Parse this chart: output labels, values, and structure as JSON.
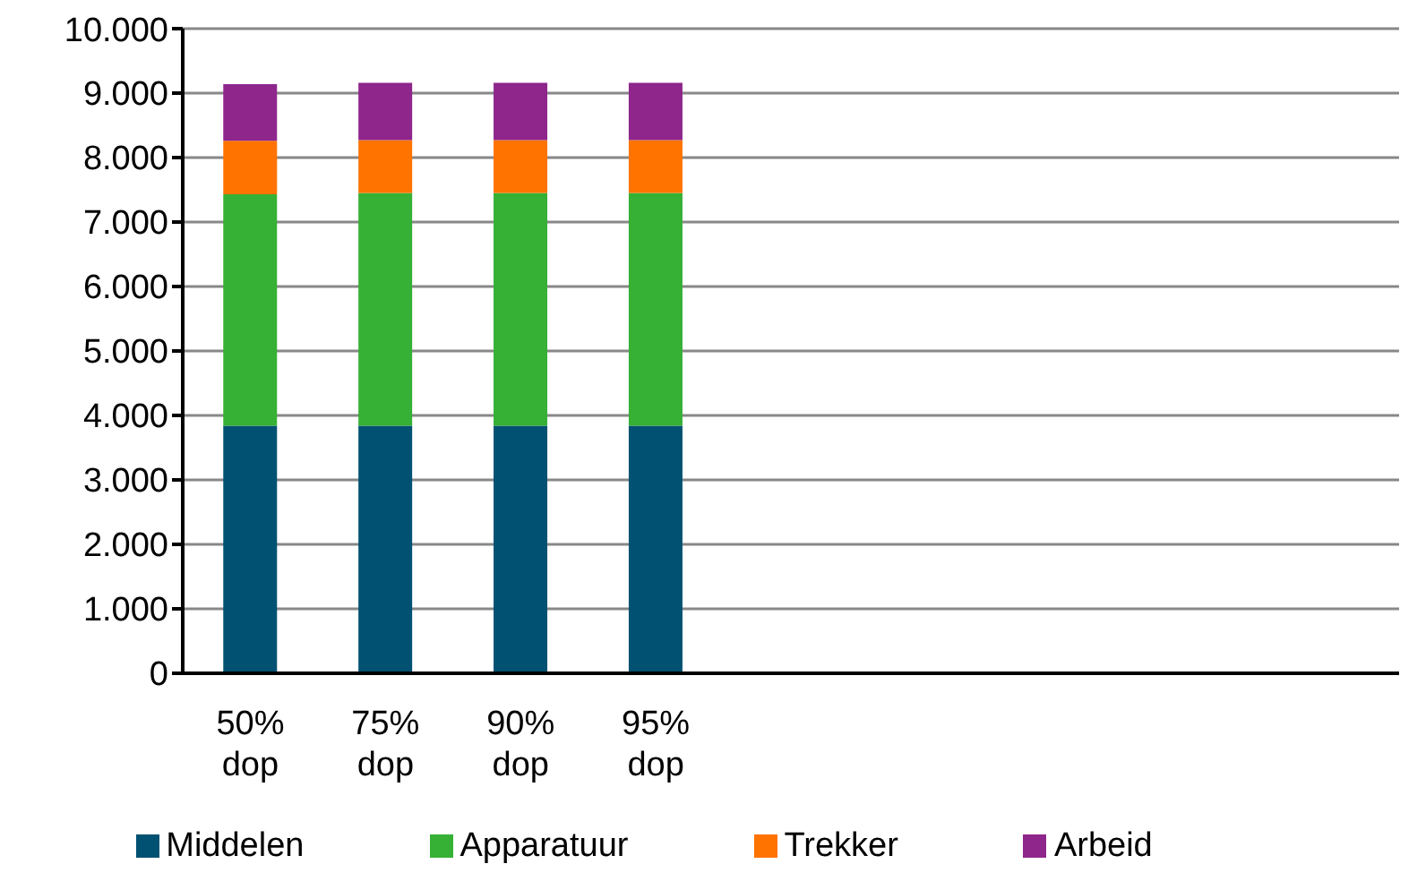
{
  "chart_data": {
    "type": "bar",
    "stacked": true,
    "categories": [
      "50% dop",
      "75% dop",
      "90% dop",
      "95% dop",
      null,
      null,
      null,
      null,
      null
    ],
    "series": [
      {
        "name": "Middelen",
        "color": "#005172",
        "values": [
          3840,
          3840,
          3840,
          3840,
          null,
          null,
          null,
          null,
          null
        ]
      },
      {
        "name": "Apparatuur",
        "color": "#36b035",
        "values": [
          3590,
          3610,
          3610,
          3610,
          null,
          null,
          null,
          null,
          null
        ]
      },
      {
        "name": "Trekker",
        "color": "#ff7300",
        "values": [
          830,
          820,
          820,
          820,
          null,
          null,
          null,
          null,
          null
        ]
      },
      {
        "name": "Arbeid",
        "color": "#8e268c",
        "values": [
          880,
          890,
          890,
          890,
          null,
          null,
          null,
          null,
          null
        ]
      }
    ],
    "ylim": [
      0,
      10000
    ],
    "yticks": [
      {
        "value": 0,
        "label": "0"
      },
      {
        "value": 1000,
        "label": "1.000"
      },
      {
        "value": 2000,
        "label": "2.000"
      },
      {
        "value": 3000,
        "label": "3.000"
      },
      {
        "value": 4000,
        "label": "4.000"
      },
      {
        "value": 5000,
        "label": "5.000"
      },
      {
        "value": 6000,
        "label": "6.000"
      },
      {
        "value": 7000,
        "label": "7.000"
      },
      {
        "value": 8000,
        "label": "8.000"
      },
      {
        "value": 9000,
        "label": "9.000"
      },
      {
        "value": 10000,
        "label": "10.000"
      }
    ],
    "grid": "y",
    "legend": "bottom"
  }
}
